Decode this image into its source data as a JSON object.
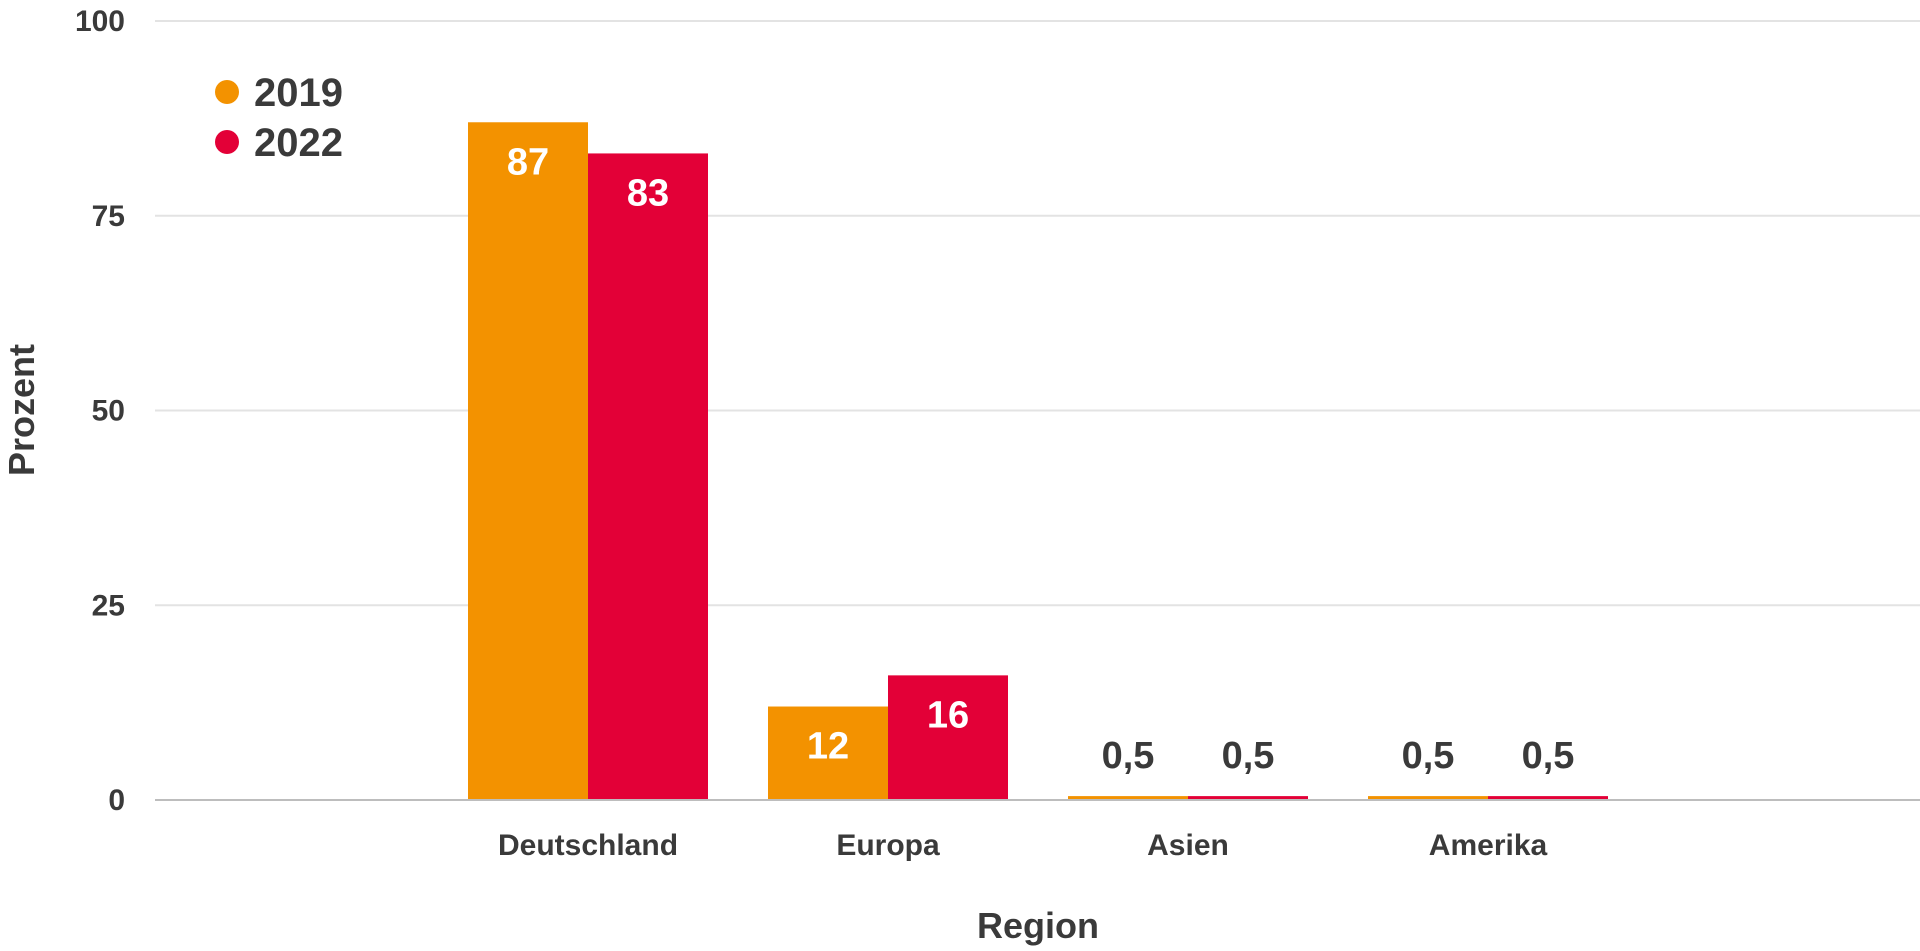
{
  "chart_data": {
    "type": "bar",
    "title": "",
    "xlabel": "Region",
    "ylabel": "Prozent",
    "ylim": [
      0,
      100
    ],
    "yticks": [
      0,
      25,
      50,
      75,
      100
    ],
    "categories": [
      "Deutschland",
      "Europa",
      "Asien",
      "Amerika"
    ],
    "series": [
      {
        "name": "2019",
        "color": "#F39200",
        "values": [
          87,
          12,
          0.5,
          0.5
        ],
        "labels": [
          "87",
          "12",
          "0,5",
          "0,5"
        ]
      },
      {
        "name": "2022",
        "color": "#E30037",
        "values": [
          83,
          16,
          0.5,
          0.5
        ],
        "labels": [
          "83",
          "16",
          "0,5",
          "0,5"
        ]
      }
    ],
    "grid": true,
    "legend": "top-left",
    "colors": {
      "text": "#3A3A3A",
      "gridline": "#E3E3E3",
      "axisline": "#BDBDBD",
      "label_inside": "#FFFFFF"
    }
  }
}
